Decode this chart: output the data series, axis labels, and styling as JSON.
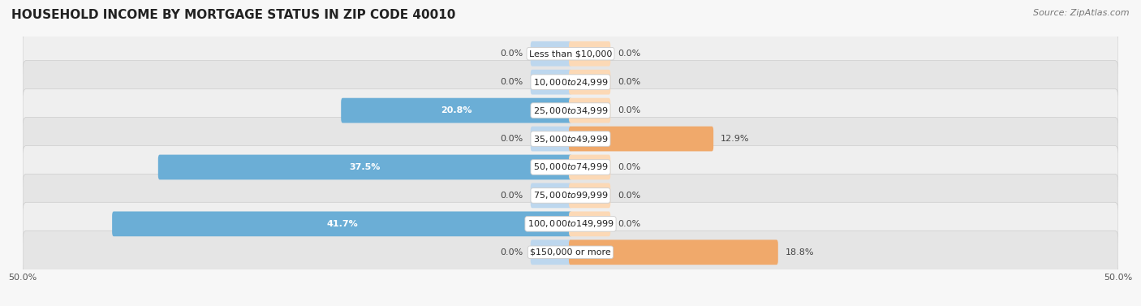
{
  "title": "HOUSEHOLD INCOME BY MORTGAGE STATUS IN ZIP CODE 40010",
  "source": "Source: ZipAtlas.com",
  "categories": [
    "Less than $10,000",
    "$10,000 to $24,999",
    "$25,000 to $34,999",
    "$35,000 to $49,999",
    "$50,000 to $74,999",
    "$75,000 to $99,999",
    "$100,000 to $149,999",
    "$150,000 or more"
  ],
  "without_mortgage": [
    0.0,
    0.0,
    20.8,
    0.0,
    37.5,
    0.0,
    41.7,
    0.0
  ],
  "with_mortgage": [
    0.0,
    0.0,
    0.0,
    12.9,
    0.0,
    0.0,
    0.0,
    18.8
  ],
  "color_without": "#6baed6",
  "color_without_light": "#bdd7ee",
  "color_with": "#f0a96b",
  "color_with_light": "#fcd9b6",
  "axis_limit": 50.0,
  "title_fontsize": 11,
  "source_fontsize": 8,
  "label_fontsize": 8,
  "tick_fontsize": 8,
  "bar_height": 0.58,
  "row_bg_light": "#efefef",
  "row_bg_dark": "#e5e5e5",
  "fig_bg": "#f7f7f7",
  "min_bar_display": 3.0,
  "zero_bar_stub": 3.5
}
